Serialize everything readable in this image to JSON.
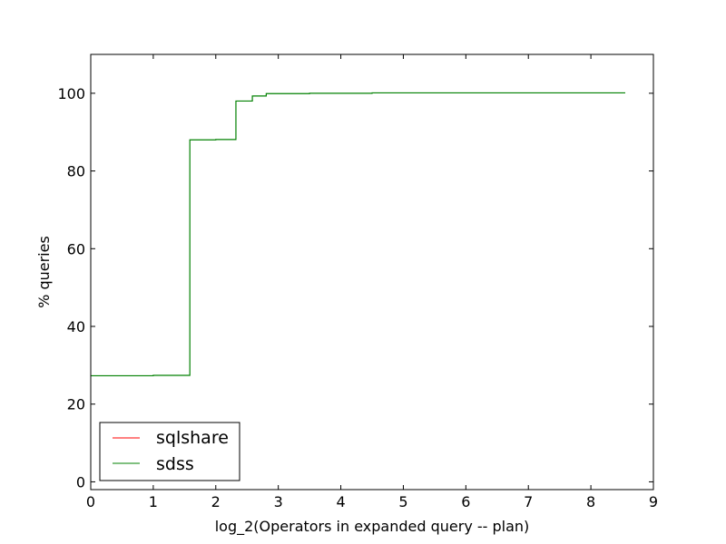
{
  "chart_data": {
    "type": "line",
    "title": "",
    "xlabel": "log_2(Operators in expanded query -- plan)",
    "ylabel": "% queries",
    "xlim": [
      0,
      9
    ],
    "ylim": [
      -2,
      110
    ],
    "xticks": [
      0,
      1,
      2,
      3,
      4,
      5,
      6,
      7,
      8,
      9
    ],
    "yticks": [
      0,
      20,
      40,
      60,
      80,
      100
    ],
    "grid": false,
    "legend": "lower-left",
    "series": [
      {
        "name": "sqlshare",
        "color": "#ff0000",
        "step": true,
        "points": []
      },
      {
        "name": "sdss",
        "color": "#008000",
        "step": true,
        "points": [
          [
            0,
            27.3
          ],
          [
            1,
            27.4
          ],
          [
            1.585,
            88.0
          ],
          [
            2,
            88.1
          ],
          [
            2.322,
            98.0
          ],
          [
            2.585,
            99.3
          ],
          [
            2.807,
            99.9
          ],
          [
            3.5,
            100.0
          ],
          [
            4.5,
            100.1
          ],
          [
            8.55,
            100.1
          ]
        ]
      }
    ]
  }
}
